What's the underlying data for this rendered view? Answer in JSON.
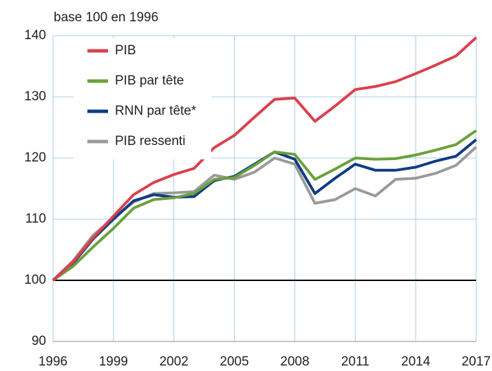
{
  "chart_data": {
    "type": "line",
    "subtitle": "base 100 en 1996",
    "x": [
      1996,
      1997,
      1998,
      1999,
      2000,
      2001,
      2002,
      2003,
      2004,
      2005,
      2006,
      2007,
      2008,
      2009,
      2010,
      2011,
      2012,
      2013,
      2014,
      2015,
      2016,
      2017
    ],
    "series": [
      {
        "name": "PIB",
        "color": "#d9414d",
        "values": [
          100,
          103,
          107,
          110.5,
          114,
          116,
          117.3,
          118.3,
          121.7,
          123.7,
          126.7,
          129.6,
          129.8,
          126,
          128.5,
          131.2,
          131.7,
          132.5,
          133.8,
          135.2,
          136.7,
          139.7
        ]
      },
      {
        "name": "PIB par tête",
        "color": "#6aa13b",
        "values": [
          100,
          102.3,
          105.5,
          108.5,
          111.8,
          113.2,
          113.5,
          114.2,
          116.5,
          116.8,
          118.8,
          121,
          120.6,
          116.5,
          118.2,
          120,
          119.8,
          119.9,
          120.5,
          121.3,
          122.2,
          124.5
        ]
      },
      {
        "name": "RNN par tête*",
        "color": "#0f3c82",
        "values": [
          100,
          102.8,
          106.8,
          110,
          113,
          114,
          113.6,
          113.7,
          116.3,
          117,
          119,
          121,
          119.8,
          114.2,
          116.7,
          119,
          118,
          118,
          118.5,
          119.5,
          120.3,
          123
        ]
      },
      {
        "name": "PIB ressenti",
        "color": "#9a9a9a",
        "values": [
          100,
          103.2,
          107.4,
          110.2,
          112.8,
          114.2,
          114.3,
          114.5,
          117.2,
          116.5,
          117.7,
          120,
          119,
          112.6,
          113.2,
          115,
          113.8,
          116.5,
          116.7,
          117.5,
          118.8,
          121.8
        ]
      }
    ],
    "xlim": [
      1996,
      2017
    ],
    "xticks": [
      1996,
      1999,
      2002,
      2005,
      2008,
      2011,
      2014,
      2017
    ],
    "ylim": [
      90,
      140
    ],
    "yticks": [
      90,
      100,
      110,
      120,
      130,
      140
    ],
    "baseline": 100,
    "grid": true,
    "legend": "top-left"
  }
}
